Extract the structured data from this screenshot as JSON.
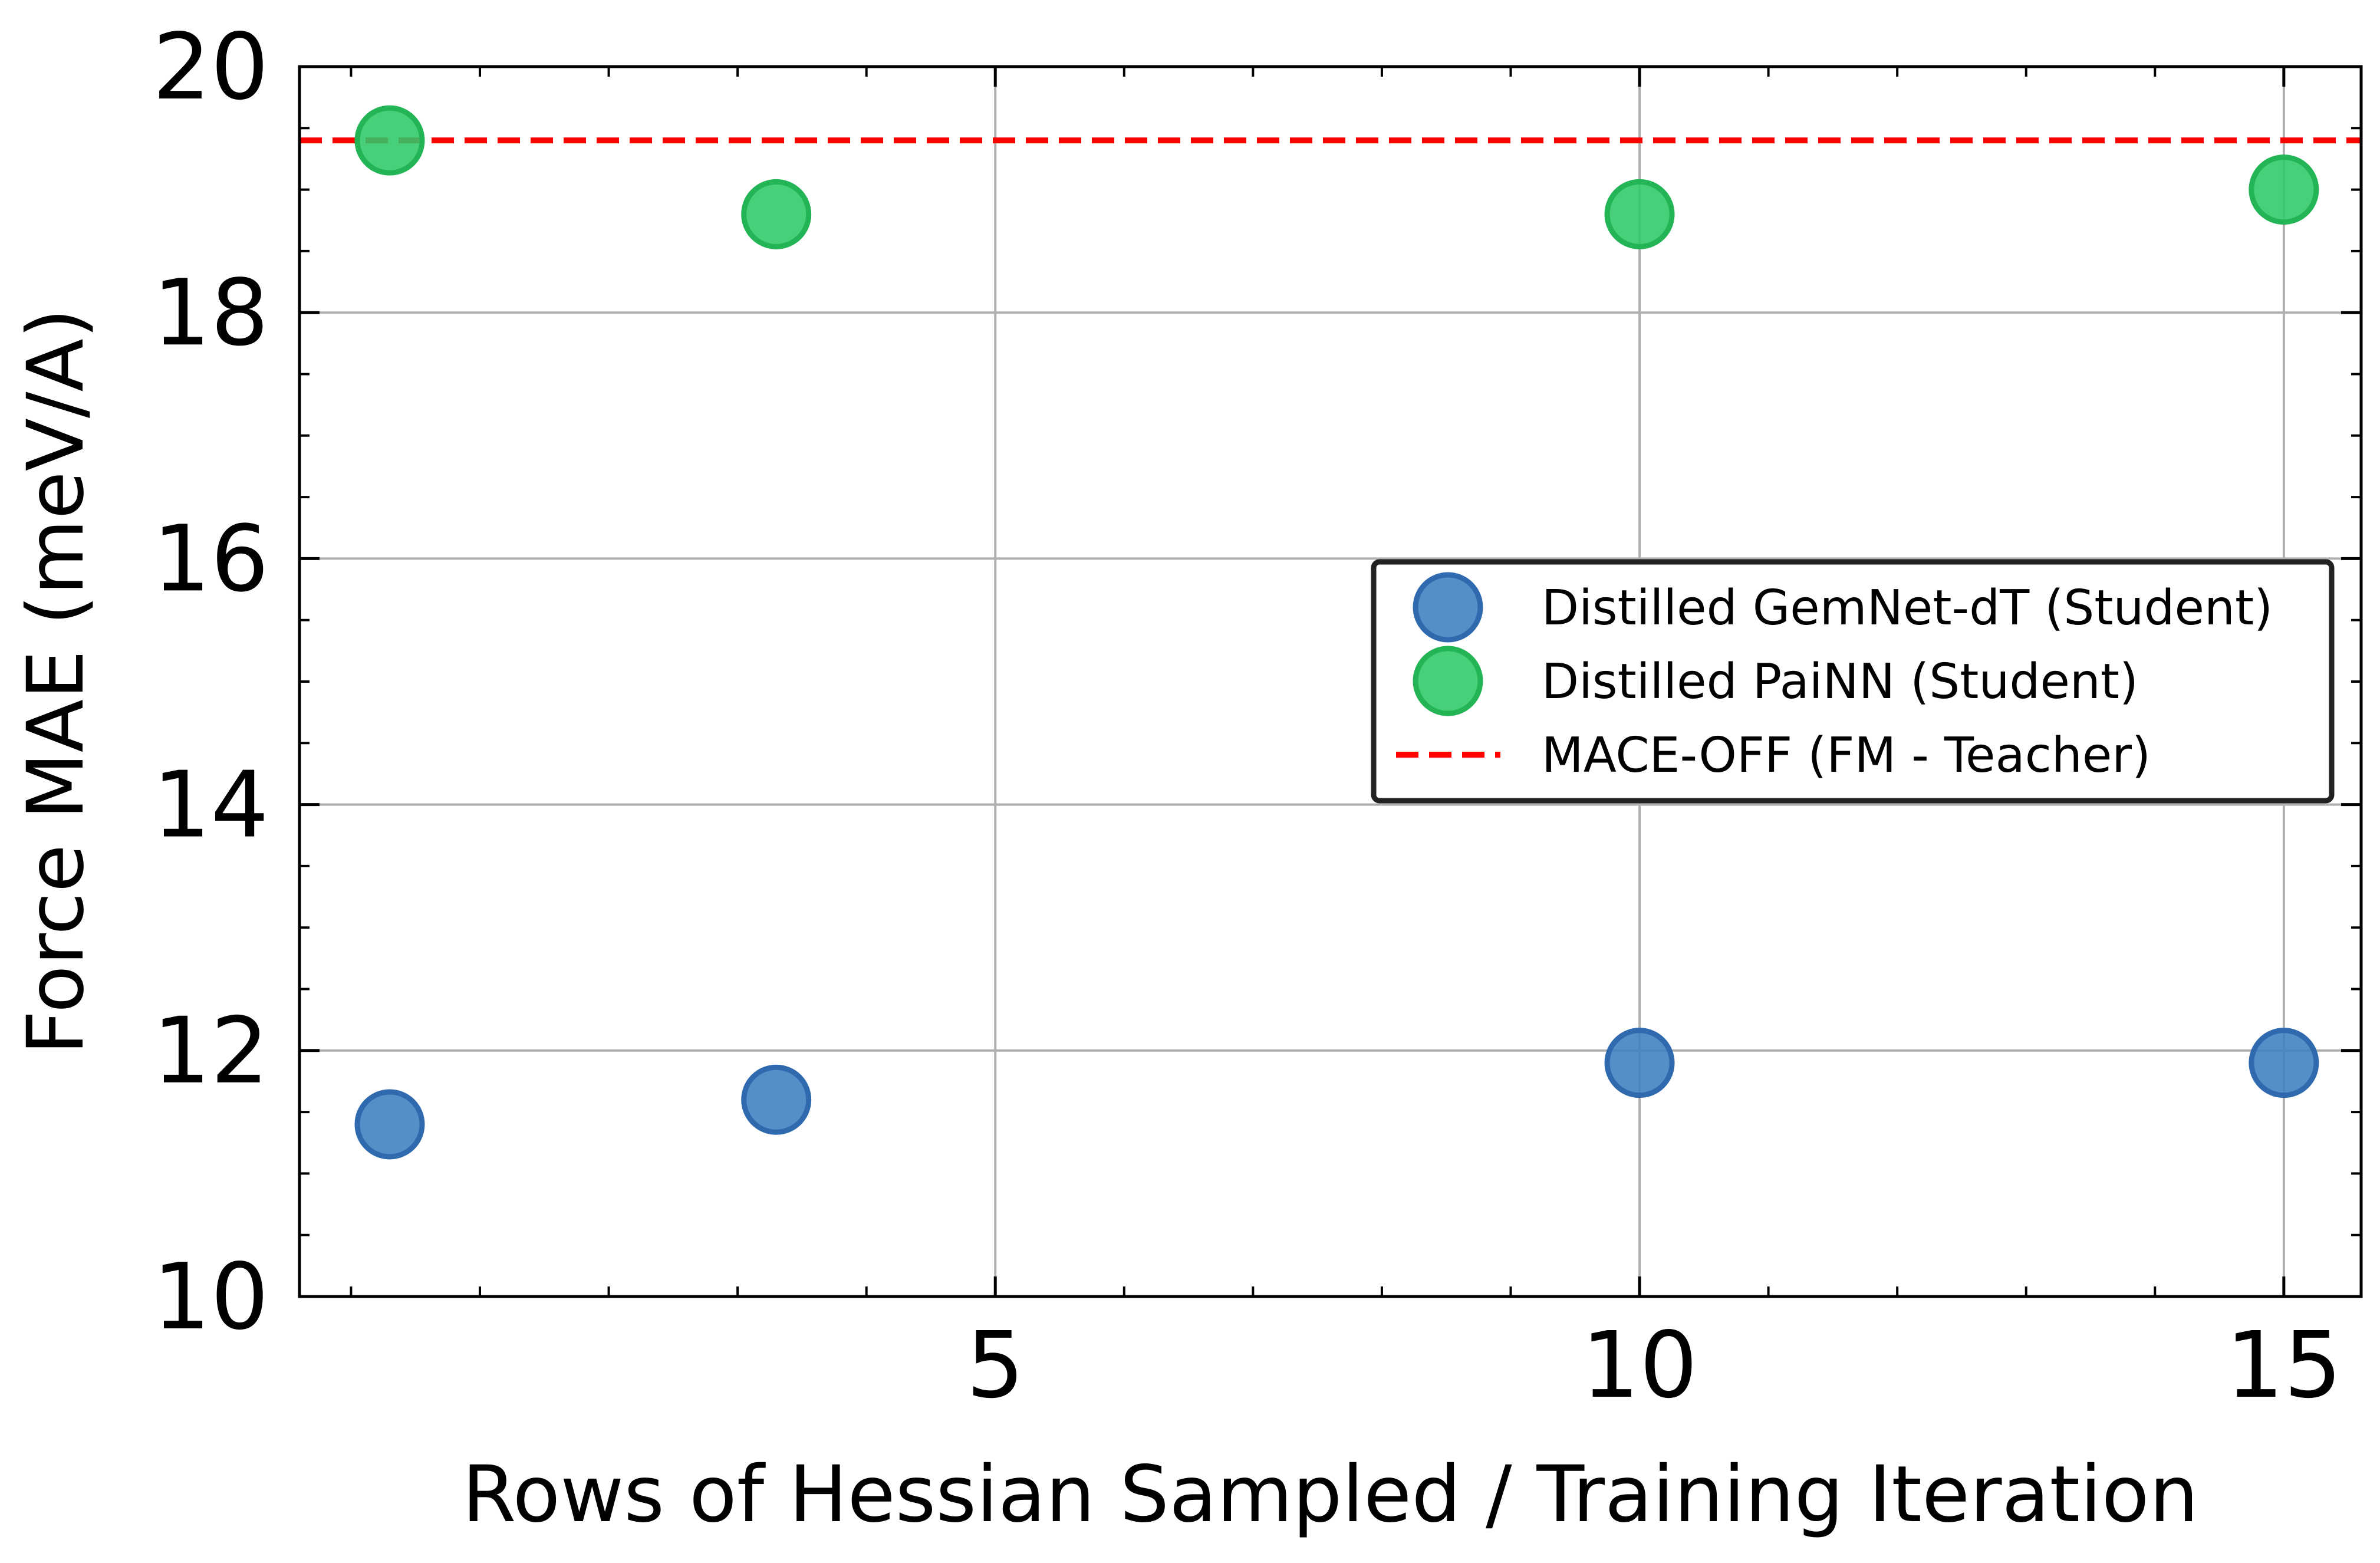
{
  "chart_data": {
    "type": "scatter",
    "title": "",
    "xlabel": "Rows of Hessian Sampled / Training Iteration",
    "ylabel": "Force MAE (meV/A)",
    "xlim": [
      -0.4,
      15.6
    ],
    "ylim": [
      10,
      20
    ],
    "xticks": [
      5,
      10,
      15
    ],
    "yticks": [
      10,
      12,
      14,
      16,
      18,
      20
    ],
    "grid": true,
    "legend_position": "center-right",
    "series": [
      {
        "name": "Distilled GemNet-dT (Student)",
        "kind": "scatter",
        "color": "#3f7fbf",
        "edge_color": "#2e6aad",
        "x": [
          0.3,
          3.3,
          10,
          15
        ],
        "y": [
          11.4,
          11.6,
          11.9,
          11.9
        ]
      },
      {
        "name": "Distilled PaiNN (Student)",
        "kind": "scatter",
        "color": "#2ec866",
        "edge_color": "#22b455",
        "x": [
          0.3,
          3.3,
          10,
          15
        ],
        "y": [
          19.4,
          18.8,
          18.8,
          19.0
        ]
      },
      {
        "name": "MACE-OFF (FM - Teacher)",
        "kind": "hline",
        "color": "#ff0000",
        "style": "dashed",
        "y": 19.4
      }
    ]
  }
}
